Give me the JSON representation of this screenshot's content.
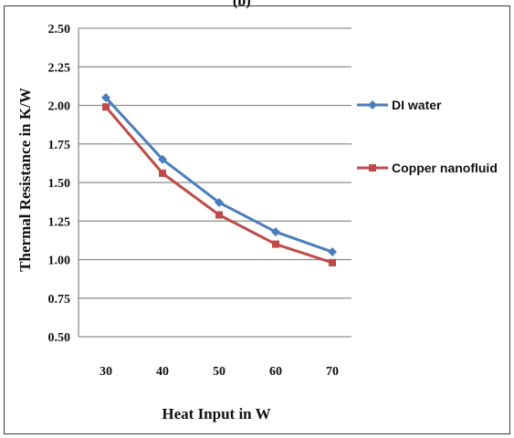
{
  "header": {
    "caption": "(b)"
  },
  "chart_data": {
    "type": "line",
    "xlabel": "Heat Input in W",
    "ylabel": "Thermal Resistance in K/W",
    "x": [
      30,
      40,
      50,
      60,
      70
    ],
    "ylim": [
      0.5,
      2.5
    ],
    "yticks": [
      "0.50",
      "0.75",
      "1.00",
      "1.25",
      "1.50",
      "1.75",
      "2.00",
      "2.25",
      "2.50"
    ],
    "xticks": [
      "30",
      "40",
      "50",
      "60",
      "70"
    ],
    "grid": true,
    "legend_position": "right",
    "series": [
      {
        "name": "DI water",
        "values": [
          2.05,
          1.65,
          1.37,
          1.18,
          1.05
        ],
        "color": "#4a7ebb",
        "marker": "diamond"
      },
      {
        "name": "Copper nanofluid",
        "values": [
          1.99,
          1.56,
          1.29,
          1.1,
          0.98
        ],
        "color": "#be4b48",
        "marker": "square"
      }
    ]
  }
}
